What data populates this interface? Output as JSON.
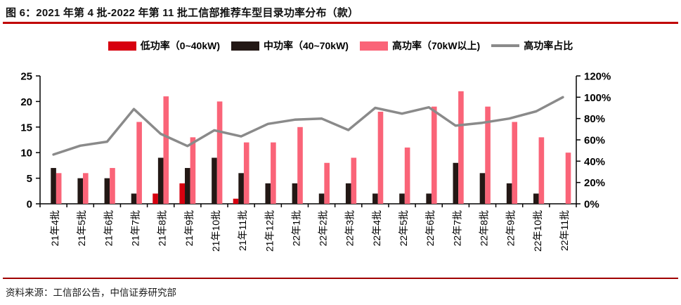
{
  "header": {
    "title": "图 6：2021 年第 4 批-2022 年第 11 批工信部推荐车型目录功率分布（款）"
  },
  "footer": {
    "source": "资料来源：工信部公告，中信证券研究部"
  },
  "colors": {
    "title_rule": "#c00000",
    "footer_rule": "#a00000",
    "bar_low": "#d7000f",
    "bar_mid": "#231815",
    "bar_high": "#fa6478",
    "ratio_line": "#8a8a8a",
    "axis": "#000000",
    "text": "#000000"
  },
  "chart_data": {
    "type": "bar",
    "title": "2021年第4批-2022年第11批工信部推荐车型目录功率分布（款）",
    "legend_position": "top",
    "grid": false,
    "categories": [
      "21年4批",
      "21年5批",
      "21年6批",
      "21年7批",
      "21年8批",
      "21年9批",
      "21年10批",
      "21年11批",
      "21年12批",
      "22年1批",
      "22年2批",
      "22年3批",
      "22年4批",
      "22年5批",
      "22年6批",
      "22年7批",
      "22年8批",
      "22年9批",
      "22年10批",
      "22年11批"
    ],
    "series": [
      {
        "key": "low",
        "name": "低功率（0~40kW)",
        "type": "bar",
        "axis": "left",
        "values": [
          0,
          0,
          0,
          0,
          2,
          4,
          0,
          1,
          0,
          0,
          0,
          0,
          0,
          0,
          0,
          0,
          0,
          0,
          0,
          0
        ]
      },
      {
        "key": "mid",
        "name": "中功率（40~70kW)",
        "type": "bar",
        "axis": "left",
        "values": [
          7,
          5,
          5,
          2,
          9,
          7,
          9,
          6,
          4,
          4,
          2,
          4,
          2,
          2,
          2,
          8,
          6,
          4,
          2,
          0
        ]
      },
      {
        "key": "high",
        "name": "高功率（70kW以上)",
        "type": "bar",
        "axis": "left",
        "values": [
          6,
          6,
          7,
          16,
          21,
          13,
          20,
          12,
          12,
          15,
          8,
          9,
          18,
          11,
          19,
          22,
          19,
          16,
          13,
          10
        ]
      },
      {
        "key": "ratio",
        "name": "高功率占比",
        "type": "line",
        "axis": "right",
        "values": [
          46.2,
          54.5,
          58.3,
          88.9,
          65.6,
          54.2,
          69.0,
          63.2,
          75.0,
          78.9,
          80.0,
          69.2,
          90.0,
          84.6,
          90.5,
          73.3,
          76.0,
          80.0,
          86.7,
          100.0
        ]
      }
    ],
    "left_axis": {
      "min": 0,
      "max": 25,
      "ticks": [
        0,
        5,
        10,
        15,
        20,
        25
      ]
    },
    "right_axis": {
      "min": 0,
      "max": 120,
      "ticks": [
        0,
        20,
        40,
        60,
        80,
        100,
        120
      ],
      "tick_labels": [
        "0%",
        "20%",
        "40%",
        "60%",
        "80%",
        "100%",
        "120%"
      ]
    }
  }
}
